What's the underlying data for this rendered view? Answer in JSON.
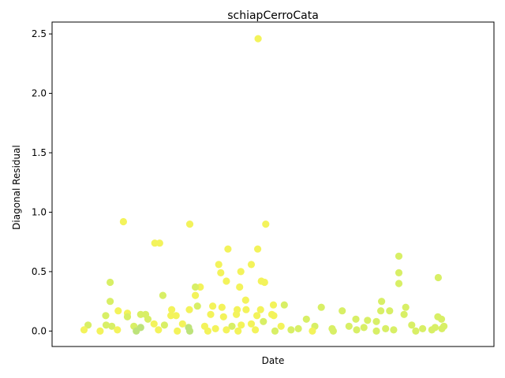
{
  "chart_data": {
    "type": "scatter",
    "title": "schiapCerroCata",
    "xlabel": "Date",
    "ylabel": "Diagonal Residual",
    "ylim": [
      -0.13,
      2.6
    ],
    "yticks": [
      "0.0",
      "0.5",
      "1.0",
      "1.5",
      "2.0",
      "2.5"
    ],
    "ytick_values": [
      0.0,
      0.5,
      1.0,
      1.5,
      2.0,
      2.5
    ],
    "xticks_shown": false,
    "grid": false,
    "legend": "none",
    "colors": {
      "yellow": "#f3f35b",
      "lime": "#d8ef66",
      "green": "#bde37a",
      "axis": "#000000"
    },
    "x_range": [
      0,
      1
    ],
    "points": [
      {
        "x": 0.463,
        "y": 2.46,
        "c": "yellow"
      },
      {
        "x": 0.128,
        "y": 0.92,
        "c": "yellow"
      },
      {
        "x": 0.293,
        "y": 0.9,
        "c": "yellow"
      },
      {
        "x": 0.482,
        "y": 0.9,
        "c": "yellow"
      },
      {
        "x": 0.206,
        "y": 0.74,
        "c": "yellow"
      },
      {
        "x": 0.218,
        "y": 0.74,
        "c": "yellow"
      },
      {
        "x": 0.388,
        "y": 0.69,
        "c": "yellow"
      },
      {
        "x": 0.462,
        "y": 0.69,
        "c": "yellow"
      },
      {
        "x": 0.813,
        "y": 0.63,
        "c": "lime"
      },
      {
        "x": 0.365,
        "y": 0.56,
        "c": "yellow"
      },
      {
        "x": 0.446,
        "y": 0.56,
        "c": "yellow"
      },
      {
        "x": 0.42,
        "y": 0.5,
        "c": "yellow"
      },
      {
        "x": 0.37,
        "y": 0.49,
        "c": "yellow"
      },
      {
        "x": 0.813,
        "y": 0.49,
        "c": "lime"
      },
      {
        "x": 0.911,
        "y": 0.45,
        "c": "lime"
      },
      {
        "x": 0.095,
        "y": 0.41,
        "c": "lime"
      },
      {
        "x": 0.384,
        "y": 0.42,
        "c": "yellow"
      },
      {
        "x": 0.471,
        "y": 0.42,
        "c": "yellow"
      },
      {
        "x": 0.479,
        "y": 0.41,
        "c": "yellow"
      },
      {
        "x": 0.813,
        "y": 0.4,
        "c": "lime"
      },
      {
        "x": 0.319,
        "y": 0.37,
        "c": "yellow"
      },
      {
        "x": 0.417,
        "y": 0.37,
        "c": "yellow"
      },
      {
        "x": 0.307,
        "y": 0.37,
        "c": "lime"
      },
      {
        "x": 0.307,
        "y": 0.3,
        "c": "yellow"
      },
      {
        "x": 0.226,
        "y": 0.3,
        "c": "lime"
      },
      {
        "x": 0.095,
        "y": 0.25,
        "c": "lime"
      },
      {
        "x": 0.432,
        "y": 0.26,
        "c": "yellow"
      },
      {
        "x": 0.77,
        "y": 0.25,
        "c": "lime"
      },
      {
        "x": 0.312,
        "y": 0.21,
        "c": "lime"
      },
      {
        "x": 0.501,
        "y": 0.22,
        "c": "yellow"
      },
      {
        "x": 0.528,
        "y": 0.22,
        "c": "lime"
      },
      {
        "x": 0.35,
        "y": 0.21,
        "c": "yellow"
      },
      {
        "x": 0.62,
        "y": 0.2,
        "c": "lime"
      },
      {
        "x": 0.83,
        "y": 0.2,
        "c": "lime"
      },
      {
        "x": 0.292,
        "y": 0.18,
        "c": "yellow"
      },
      {
        "x": 0.248,
        "y": 0.18,
        "c": "yellow"
      },
      {
        "x": 0.373,
        "y": 0.2,
        "c": "yellow"
      },
      {
        "x": 0.411,
        "y": 0.18,
        "c": "yellow"
      },
      {
        "x": 0.433,
        "y": 0.18,
        "c": "yellow"
      },
      {
        "x": 0.469,
        "y": 0.18,
        "c": "yellow"
      },
      {
        "x": 0.115,
        "y": 0.17,
        "c": "yellow"
      },
      {
        "x": 0.672,
        "y": 0.17,
        "c": "lime"
      },
      {
        "x": 0.768,
        "y": 0.17,
        "c": "lime"
      },
      {
        "x": 0.79,
        "y": 0.17,
        "c": "lime"
      },
      {
        "x": 0.138,
        "y": 0.15,
        "c": "yellow"
      },
      {
        "x": 0.171,
        "y": 0.14,
        "c": "lime"
      },
      {
        "x": 0.183,
        "y": 0.14,
        "c": "lime"
      },
      {
        "x": 0.345,
        "y": 0.14,
        "c": "yellow"
      },
      {
        "x": 0.409,
        "y": 0.14,
        "c": "yellow"
      },
      {
        "x": 0.46,
        "y": 0.13,
        "c": "yellow"
      },
      {
        "x": 0.497,
        "y": 0.14,
        "c": "yellow"
      },
      {
        "x": 0.084,
        "y": 0.13,
        "c": "lime"
      },
      {
        "x": 0.138,
        "y": 0.12,
        "c": "lime"
      },
      {
        "x": 0.189,
        "y": 0.1,
        "c": "lime"
      },
      {
        "x": 0.246,
        "y": 0.13,
        "c": "yellow"
      },
      {
        "x": 0.259,
        "y": 0.13,
        "c": "yellow"
      },
      {
        "x": 0.377,
        "y": 0.12,
        "c": "yellow"
      },
      {
        "x": 0.502,
        "y": 0.13,
        "c": "yellow"
      },
      {
        "x": 0.826,
        "y": 0.14,
        "c": "lime"
      },
      {
        "x": 0.91,
        "y": 0.12,
        "c": "lime"
      },
      {
        "x": 0.919,
        "y": 0.1,
        "c": "lime"
      },
      {
        "x": 0.583,
        "y": 0.1,
        "c": "lime"
      },
      {
        "x": 0.706,
        "y": 0.1,
        "c": "lime"
      },
      {
        "x": 0.735,
        "y": 0.09,
        "c": "lime"
      },
      {
        "x": 0.757,
        "y": 0.08,
        "c": "lime"
      },
      {
        "x": 0.04,
        "y": 0.05,
        "c": "lime"
      },
      {
        "x": 0.085,
        "y": 0.05,
        "c": "lime"
      },
      {
        "x": 0.099,
        "y": 0.04,
        "c": "lime"
      },
      {
        "x": 0.154,
        "y": 0.04,
        "c": "lime"
      },
      {
        "x": 0.171,
        "y": 0.03,
        "c": "green"
      },
      {
        "x": 0.204,
        "y": 0.06,
        "c": "yellow"
      },
      {
        "x": 0.23,
        "y": 0.05,
        "c": "lime"
      },
      {
        "x": 0.275,
        "y": 0.06,
        "c": "yellow"
      },
      {
        "x": 0.29,
        "y": 0.03,
        "c": "green"
      },
      {
        "x": 0.33,
        "y": 0.04,
        "c": "yellow"
      },
      {
        "x": 0.357,
        "y": 0.02,
        "c": "yellow"
      },
      {
        "x": 0.398,
        "y": 0.04,
        "c": "lime"
      },
      {
        "x": 0.421,
        "y": 0.05,
        "c": "yellow"
      },
      {
        "x": 0.446,
        "y": 0.06,
        "c": "yellow"
      },
      {
        "x": 0.476,
        "y": 0.08,
        "c": "lime"
      },
      {
        "x": 0.52,
        "y": 0.04,
        "c": "yellow"
      },
      {
        "x": 0.563,
        "y": 0.02,
        "c": "lime"
      },
      {
        "x": 0.604,
        "y": 0.04,
        "c": "lime"
      },
      {
        "x": 0.647,
        "y": 0.02,
        "c": "lime"
      },
      {
        "x": 0.689,
        "y": 0.04,
        "c": "lime"
      },
      {
        "x": 0.726,
        "y": 0.03,
        "c": "lime"
      },
      {
        "x": 0.78,
        "y": 0.02,
        "c": "lime"
      },
      {
        "x": 0.845,
        "y": 0.05,
        "c": "lime"
      },
      {
        "x": 0.872,
        "y": 0.02,
        "c": "lime"
      },
      {
        "x": 0.903,
        "y": 0.03,
        "c": "lime"
      },
      {
        "x": 0.925,
        "y": 0.04,
        "c": "lime"
      },
      {
        "x": 0.03,
        "y": 0.01,
        "c": "yellow"
      },
      {
        "x": 0.07,
        "y": 0.0,
        "c": "yellow"
      },
      {
        "x": 0.113,
        "y": 0.01,
        "c": "yellow"
      },
      {
        "x": 0.16,
        "y": 0.0,
        "c": "green"
      },
      {
        "x": 0.215,
        "y": 0.01,
        "c": "yellow"
      },
      {
        "x": 0.262,
        "y": 0.0,
        "c": "yellow"
      },
      {
        "x": 0.293,
        "y": 0.0,
        "c": "green"
      },
      {
        "x": 0.338,
        "y": 0.0,
        "c": "yellow"
      },
      {
        "x": 0.384,
        "y": 0.01,
        "c": "yellow"
      },
      {
        "x": 0.413,
        "y": 0.0,
        "c": "yellow"
      },
      {
        "x": 0.456,
        "y": 0.01,
        "c": "yellow"
      },
      {
        "x": 0.505,
        "y": 0.0,
        "c": "lime"
      },
      {
        "x": 0.545,
        "y": 0.01,
        "c": "lime"
      },
      {
        "x": 0.598,
        "y": 0.0,
        "c": "yellow"
      },
      {
        "x": 0.65,
        "y": 0.0,
        "c": "lime"
      },
      {
        "x": 0.708,
        "y": 0.01,
        "c": "lime"
      },
      {
        "x": 0.757,
        "y": 0.0,
        "c": "lime"
      },
      {
        "x": 0.8,
        "y": 0.01,
        "c": "lime"
      },
      {
        "x": 0.855,
        "y": 0.0,
        "c": "lime"
      },
      {
        "x": 0.895,
        "y": 0.01,
        "c": "lime"
      },
      {
        "x": 0.92,
        "y": 0.02,
        "c": "lime"
      }
    ]
  }
}
